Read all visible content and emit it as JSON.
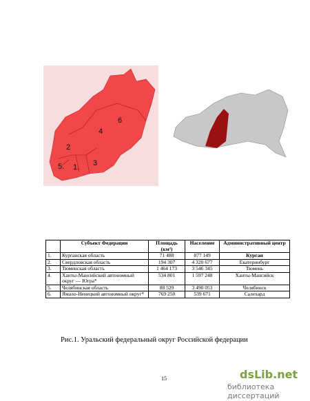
{
  "map": {
    "labels": [
      "1.",
      "2",
      "3",
      "4",
      "5.",
      "6"
    ]
  },
  "table": {
    "header": [
      "Субъект Федерации",
      "Площадь (км²)",
      "Население",
      "Административный центр"
    ],
    "rows": [
      [
        "1.",
        "Курганская область",
        "71 488",
        "877 149",
        "Курган"
      ],
      [
        "2.",
        "Свердловская область",
        "194 307",
        "4 320 677",
        "Екатеринбург"
      ],
      [
        "3.",
        "Тюменская область",
        "1 464 173",
        "3 546 345",
        "Тюмень"
      ],
      [
        "4.",
        "Ханты-Мансийский автономный округ — Югра*",
        "534 801",
        "1 597 248",
        "Ханты-Мансийск"
      ],
      [
        "5.",
        "Челябинская область",
        "88 529",
        "3 490 053",
        "Челябинск"
      ],
      [
        "6.",
        "Ямало-Ненецкий автономный округ*",
        "769 250",
        "539 671",
        "Салехард"
      ]
    ]
  },
  "caption": "Рис.1. Уральский федеральный округ Российской федерации",
  "page_number": "15",
  "watermark": {
    "brand": "dsLib.net",
    "subtitle": "библиотека диссертаций"
  }
}
